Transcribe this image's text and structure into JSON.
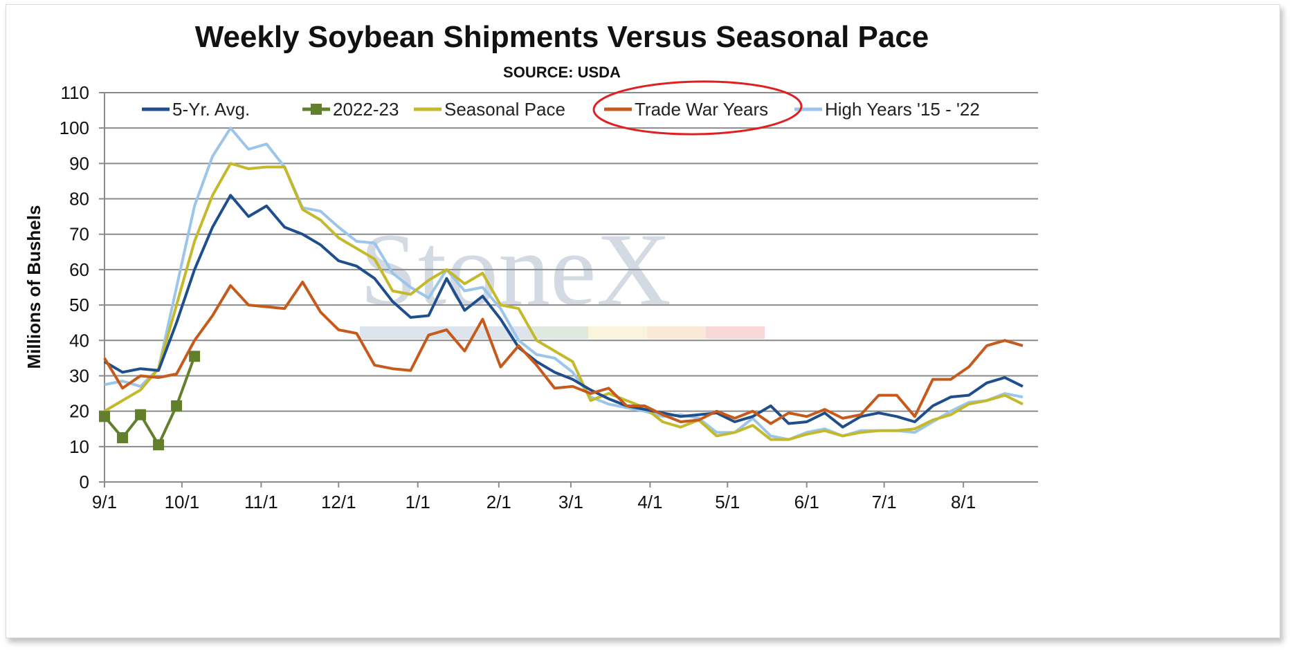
{
  "chart_data": {
    "type": "line",
    "title": "Weekly Soybean Shipments Versus Seasonal Pace",
    "subtitle": "SOURCE: USDA",
    "xlabel": "",
    "ylabel": "Millions of Bushels",
    "ylim": [
      0,
      110
    ],
    "yticks": [
      0,
      10,
      20,
      30,
      40,
      50,
      60,
      70,
      80,
      90,
      100,
      110
    ],
    "x_unit": "weeks since 9/1",
    "xlim": [
      0,
      51
    ],
    "xtick_labels": [
      "9/1",
      "10/1",
      "11/1",
      "12/1",
      "1/1",
      "2/1",
      "3/1",
      "4/1",
      "5/1",
      "6/1",
      "7/1",
      "8/1"
    ],
    "xtick_positions": [
      0,
      4.3,
      8.7,
      13,
      17.4,
      21.9,
      25.9,
      30.3,
      34.6,
      39.0,
      43.3,
      47.7
    ],
    "grid": true,
    "legend_position": "top",
    "watermark": "StoneX",
    "annotation": "red circle around Trade War Years legend entry",
    "series": [
      {
        "name": "5-Yr. Avg.",
        "color": "#1f4e8c",
        "marker": "none",
        "values": [
          34,
          31,
          32,
          31.5,
          45,
          60,
          72,
          81,
          75,
          78,
          72,
          70,
          67,
          62.5,
          61,
          57.5,
          51,
          46.5,
          47,
          57.5,
          48.5,
          52.5,
          46,
          38,
          34,
          31,
          29,
          26,
          23.5,
          21.5,
          20.5,
          19.5,
          18.5,
          19,
          19.5,
          17,
          18.5,
          21.5,
          16.5,
          17,
          19.5,
          15.5,
          18.5,
          19.5,
          18.5,
          17,
          21.5,
          24,
          24.5,
          28,
          29.5,
          27
        ]
      },
      {
        "name": "2022-23",
        "color": "#62802b",
        "marker": "square",
        "values": [
          18.5,
          12.5,
          19,
          10.5,
          21.5,
          35.5
        ]
      },
      {
        "name": "Seasonal Pace",
        "color": "#c4b92b",
        "marker": "none",
        "values": [
          20,
          23,
          26,
          32,
          50,
          68,
          81,
          90,
          88.5,
          89,
          89,
          77,
          74,
          69,
          66,
          63,
          54,
          53,
          57,
          60,
          56,
          59,
          50,
          49,
          40,
          37,
          34,
          23,
          25,
          23,
          21,
          17,
          15.5,
          17.5,
          13,
          14,
          16,
          12,
          12,
          13.5,
          14.5,
          13,
          14,
          14.5,
          14.5,
          15,
          17.5,
          19,
          22,
          23,
          24.5,
          22
        ]
      },
      {
        "name": "Trade War Years",
        "color": "#c55a1c",
        "marker": "none",
        "values": [
          35,
          26.5,
          30,
          29.5,
          30.5,
          40,
          47,
          55.5,
          50,
          49.5,
          49,
          56.5,
          48,
          43,
          42,
          33,
          32,
          31.5,
          41.5,
          43,
          37,
          46,
          32.5,
          38.5,
          33,
          26.5,
          27,
          25,
          26.5,
          21.5,
          21.5,
          19,
          17,
          17.5,
          20,
          18,
          20,
          16.5,
          19.5,
          18.5,
          20.5,
          18,
          19,
          24.5,
          24.5,
          18.5,
          29,
          29,
          32.5,
          38.5,
          40,
          38.5
        ]
      },
      {
        "name": "High Years '15 - '22",
        "color": "#9cc5ea",
        "marker": "none",
        "values": [
          27.5,
          28.5,
          27,
          32,
          55,
          78,
          92,
          100,
          94,
          95.5,
          89,
          77.5,
          76.5,
          72,
          68,
          67.5,
          59,
          55,
          52,
          60,
          54,
          55,
          49,
          40,
          36,
          35,
          31,
          24,
          22,
          21,
          20,
          18.5,
          19,
          18,
          14,
          14,
          18,
          13,
          12,
          14,
          15,
          13,
          14.5,
          14.5,
          14.5,
          14,
          17,
          20,
          22.5,
          23,
          25,
          24
        ]
      }
    ]
  }
}
